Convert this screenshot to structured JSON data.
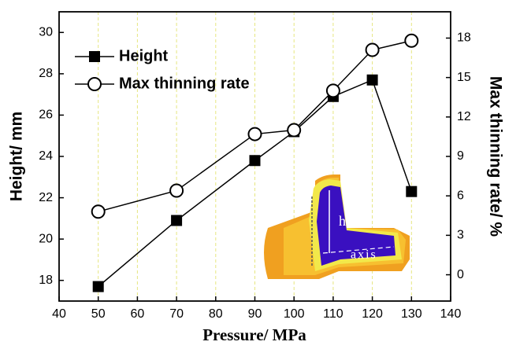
{
  "chart_data": {
    "type": "line",
    "x_label": "Pressure/ MPa",
    "y_label": "Height/ mm",
    "y2_label": "Max thinning rate/ %",
    "x": [
      50,
      70,
      90,
      100,
      110,
      120,
      130
    ],
    "series": [
      {
        "name": "Height",
        "color": "#000000",
        "marker": "square",
        "values": [
          17.7,
          20.9,
          23.8,
          25.2,
          26.9,
          27.7,
          22.3
        ]
      },
      {
        "name": "Max thinning rate",
        "color": "#000000",
        "marker": "circle",
        "axis": "y2",
        "values": [
          4.8,
          6.4,
          10.7,
          11.0,
          14.0,
          17.1,
          17.8
        ]
      }
    ],
    "xlim": [
      40,
      140
    ],
    "xticks": [
      40,
      50,
      60,
      70,
      80,
      90,
      100,
      110,
      120,
      130,
      140
    ],
    "ylim": [
      17,
      31
    ],
    "yticks": [
      18,
      20,
      22,
      24,
      26,
      28,
      30
    ],
    "y2lim": [
      -2,
      20
    ],
    "y2ticks": [
      0,
      3,
      6,
      9,
      12,
      15,
      18
    ],
    "grid": "x",
    "grid_color": "#e6e680",
    "legend": "upper left",
    "annotations": [
      "h",
      "axis"
    ]
  }
}
